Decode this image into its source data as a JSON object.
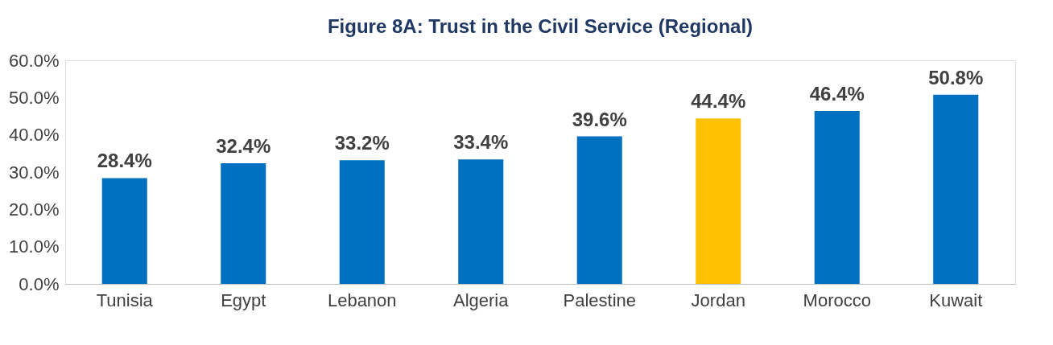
{
  "chart_data": {
    "type": "bar",
    "title": "Figure 8A: Trust in the Civil Service (Regional)",
    "categories": [
      "Tunisia",
      "Egypt",
      "Lebanon",
      "Algeria",
      "Palestine",
      "Jordan",
      "Morocco",
      "Kuwait"
    ],
    "values": [
      28.4,
      32.4,
      33.2,
      33.4,
      39.6,
      44.4,
      46.4,
      50.8
    ],
    "colors": [
      "#0070c0",
      "#0070c0",
      "#0070c0",
      "#0070c0",
      "#0070c0",
      "#ffc000",
      "#0070c0",
      "#0070c0"
    ],
    "value_labels": [
      "28.4%",
      "32.4%",
      "33.2%",
      "33.4%",
      "39.6%",
      "44.4%",
      "46.4%",
      "50.8%"
    ],
    "ylim": [
      0,
      60
    ],
    "yticks": [
      {
        "value": 0,
        "label": "0.0%"
      },
      {
        "value": 10,
        "label": "10.0%"
      },
      {
        "value": 20,
        "label": "20.0%"
      },
      {
        "value": 30,
        "label": "30.0%"
      },
      {
        "value": 40,
        "label": "40.0%"
      },
      {
        "value": 50,
        "label": "50.0%"
      },
      {
        "value": 60,
        "label": "60.0%"
      }
    ],
    "grid": false
  }
}
